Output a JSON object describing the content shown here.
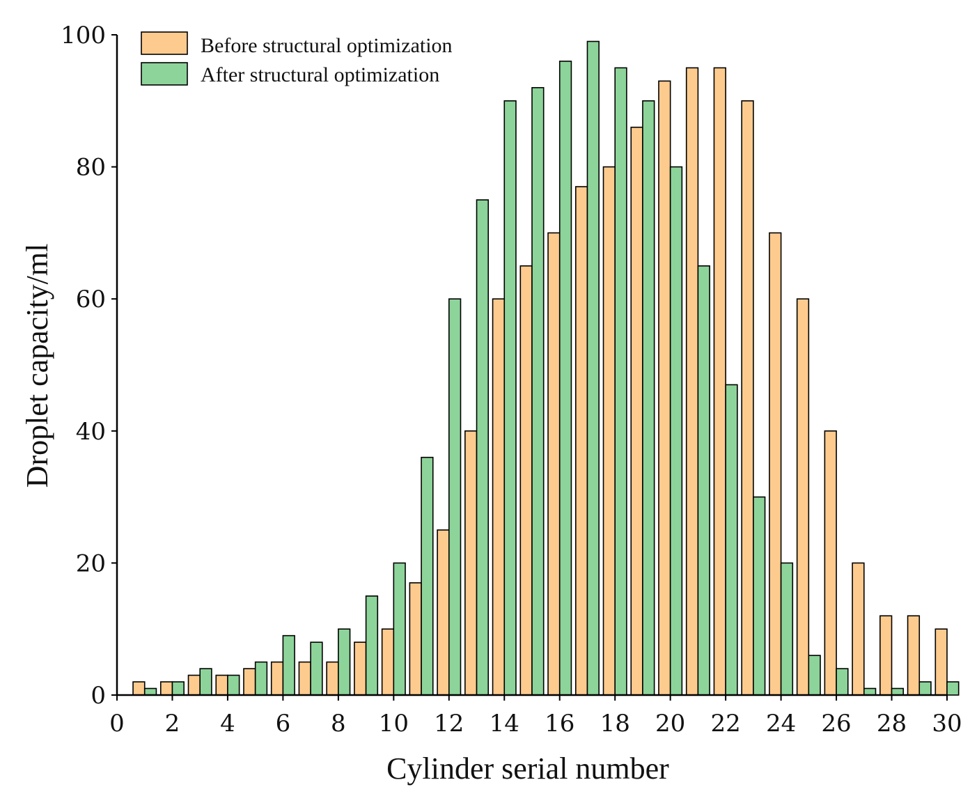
{
  "chart_data": {
    "type": "bar",
    "title": "",
    "xlabel": "Cylinder serial number",
    "ylabel": "Droplet capacity/ml",
    "xlim": [
      0,
      30
    ],
    "ylim": [
      0,
      100
    ],
    "xticks": [
      "0",
      "2",
      "4",
      "6",
      "8",
      "10",
      "12",
      "14",
      "16",
      "18",
      "20",
      "22",
      "24",
      "26",
      "28",
      "30"
    ],
    "yticks": [
      "0",
      "20",
      "40",
      "60",
      "80",
      "100"
    ],
    "categories": [
      1,
      2,
      3,
      4,
      5,
      6,
      7,
      8,
      9,
      10,
      11,
      12,
      13,
      14,
      15,
      16,
      17,
      18,
      19,
      20,
      21,
      22,
      23,
      24,
      25,
      26,
      27,
      28,
      29,
      30
    ],
    "series": [
      {
        "name": "Before structural optimization",
        "color": "#FDCB8E",
        "values": [
          2,
          2,
          3,
          3,
          4,
          5,
          5,
          5,
          8,
          10,
          17,
          25,
          40,
          60,
          65,
          70,
          77,
          80,
          86,
          93,
          95,
          95,
          90,
          70,
          60,
          40,
          20,
          12,
          12,
          10
        ]
      },
      {
        "name": "After structural optimization",
        "color": "#8DD49A",
        "values": [
          1,
          2,
          4,
          3,
          5,
          9,
          8,
          10,
          15,
          20,
          36,
          60,
          75,
          90,
          92,
          96,
          99,
          95,
          90,
          80,
          65,
          47,
          30,
          20,
          6,
          4,
          1,
          1,
          2,
          2
        ]
      }
    ],
    "legend_position": "top-left",
    "grid": false
  }
}
